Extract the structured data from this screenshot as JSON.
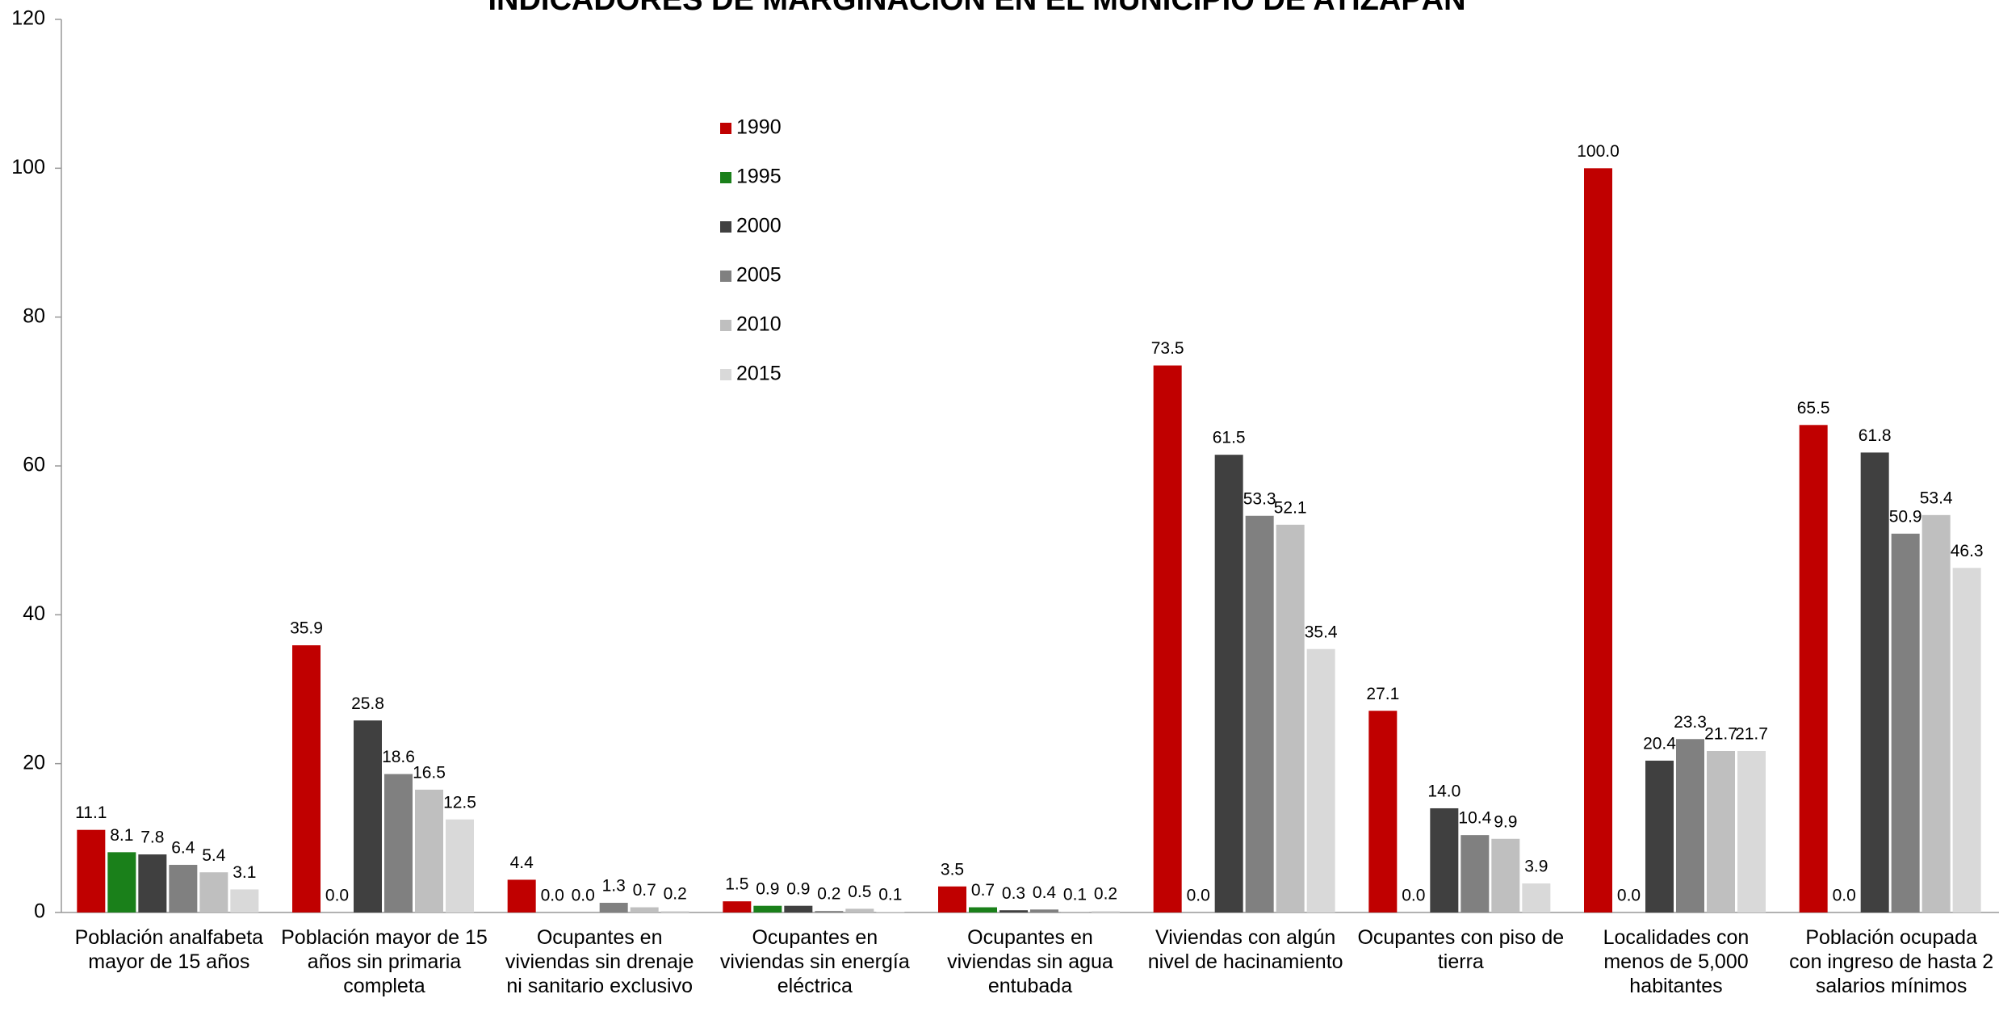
{
  "chart_data": {
    "type": "bar",
    "title": "INDICADORES DE MARGINACIÓN EN EL MUNICIPIO DE ATIZAPÁN",
    "categories": [
      "Población analfabeta mayor de 15 años",
      "Población mayor de 15 años sin primaria completa",
      "Ocupantes en viviendas sin drenaje ni sanitario exclusivo",
      "Ocupantes en viviendas sin energía eléctrica",
      "Ocupantes en viviendas sin agua entubada",
      "Viviendas con algún nivel de hacinamiento",
      "Ocupantes con piso de tierra",
      "Localidades con menos de 5,000 habitantes",
      "Población ocupada con ingreso de hasta 2 salarios mínimos"
    ],
    "series": [
      {
        "name": "1990",
        "color": "#c00000",
        "values": [
          11.1,
          35.9,
          4.4,
          1.5,
          3.5,
          73.5,
          27.1,
          100,
          65.5
        ],
        "value_labels": [
          "11.1",
          "35.9",
          "4.4",
          "1.5",
          "3.5",
          "73.5",
          "27.1",
          "100.0",
          "65.5"
        ]
      },
      {
        "name": "1995",
        "color": "#1a801a",
        "values": [
          8.1,
          0,
          0,
          0.9,
          0.7,
          0,
          0,
          0,
          0
        ],
        "value_labels": [
          "8.1",
          "0.0",
          "0.0",
          "0.9",
          "0.7",
          "0.0",
          "0.0",
          "0.0",
          "0.0"
        ]
      },
      {
        "name": "2000",
        "color": "#404040",
        "values": [
          7.8,
          25.8,
          0,
          0.9,
          0.3,
          61.5,
          14,
          20.4,
          61.8
        ],
        "value_labels": [
          "7.8",
          "25.8",
          "0.0",
          "0.9",
          "0.3",
          "61.5",
          "14.0",
          "20.4",
          "61.8"
        ]
      },
      {
        "name": "2005",
        "color": "#808080",
        "values": [
          6.4,
          18.6,
          1.3,
          0.2,
          0.4,
          53.3,
          10.4,
          23.3,
          50.9
        ],
        "value_labels": [
          "6.4",
          "18.6",
          "1.3",
          "0.2",
          "0.4",
          "53.3",
          "10.4",
          "23.3",
          "50.9"
        ]
      },
      {
        "name": "2010",
        "color": "#bfbfbf",
        "values": [
          5.4,
          16.5,
          0.7,
          0.5,
          0.1,
          52.1,
          9.9,
          21.7,
          53.4
        ],
        "value_labels": [
          "5.4",
          "16.5",
          "0.7",
          "0.5",
          "0.1",
          "52.1",
          "9.9",
          "21.7",
          "53.4"
        ]
      },
      {
        "name": "2015",
        "color": "#d9d9d9",
        "values": [
          3.1,
          12.5,
          0.2,
          0.1,
          0.2,
          35.4,
          3.9,
          21.7,
          46.3
        ],
        "value_labels": [
          "3.1",
          "12.5",
          "0.2",
          "0.1",
          "0.2",
          "35.4",
          "3.9",
          "21.7",
          "46.3"
        ]
      }
    ],
    "ylim": [
      0,
      120
    ],
    "yticks": [
      0,
      20,
      40,
      60,
      80,
      100,
      120
    ],
    "grid": false,
    "legend": "upper center"
  }
}
